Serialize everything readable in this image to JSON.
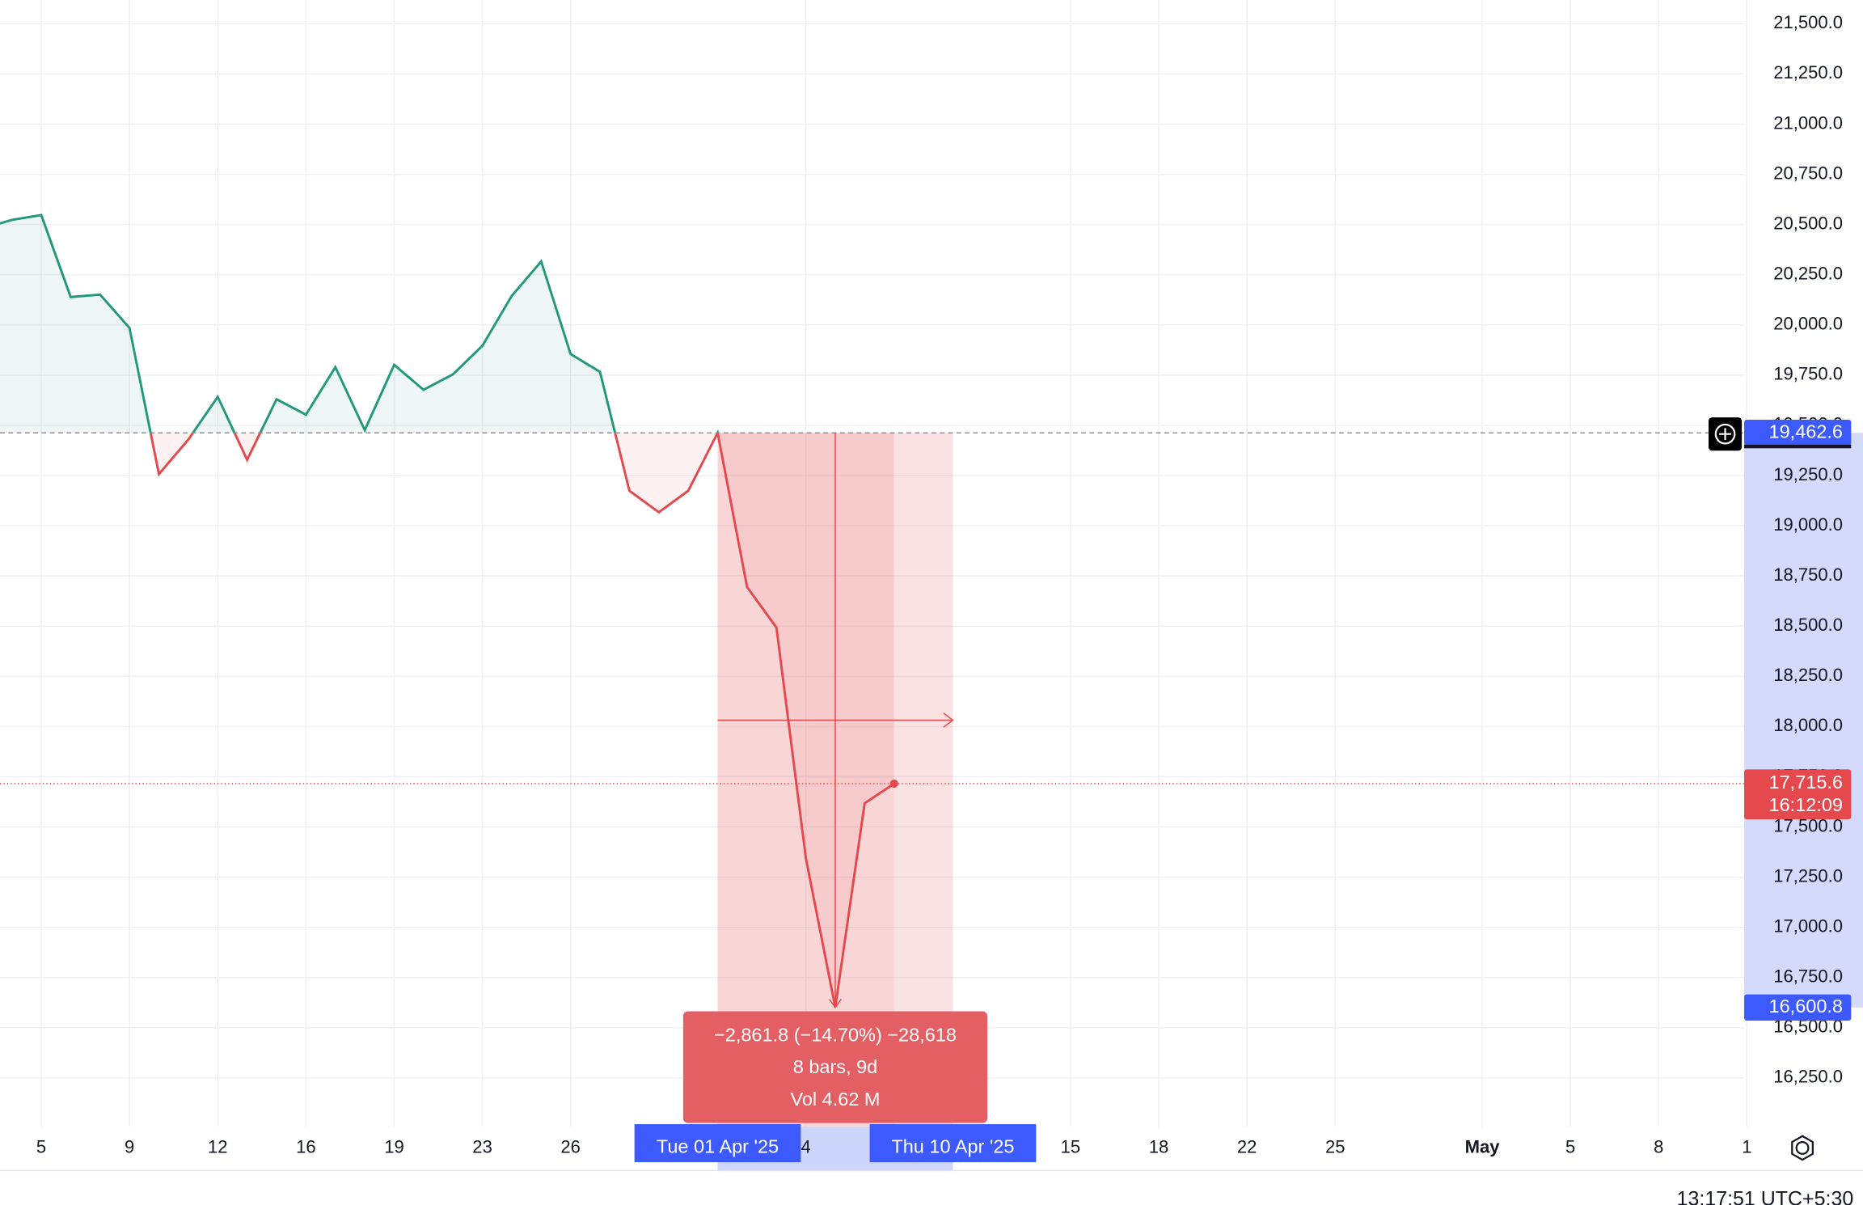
{
  "chart_data": {
    "type": "line",
    "categories": [
      null,
      null,
      "5",
      null,
      null,
      "9",
      null,
      null,
      "12",
      null,
      null,
      "16",
      null,
      null,
      "19",
      null,
      null,
      "23",
      null,
      null,
      "26",
      null,
      null,
      null,
      null,
      null,
      null,
      null,
      "4",
      null,
      null,
      null,
      null,
      null,
      null,
      null,
      null,
      "15",
      null,
      null,
      "18",
      null,
      null,
      "22",
      null,
      null,
      "25",
      null,
      null,
      null,
      null,
      "May",
      null,
      null,
      "5",
      null,
      null,
      "8",
      null,
      null,
      "1"
    ],
    "values": [
      20480,
      20523,
      20547,
      20139,
      20151,
      19985,
      19257,
      19429,
      19642,
      19328,
      19630,
      19553,
      19790,
      19476,
      19801,
      19677,
      19754,
      19896,
      20145,
      20316,
      19855,
      19766,
      19174,
      19067,
      19174,
      19462.6,
      18695,
      18493,
      17345,
      16600.8,
      17618,
      17715.6,
      null,
      null,
      null,
      null,
      null,
      null,
      null,
      null,
      null,
      null,
      null,
      null,
      null,
      null,
      null,
      null,
      null,
      null,
      null,
      null,
      null,
      null,
      null,
      null,
      null,
      null,
      null,
      null,
      null
    ],
    "colors": {
      "up": "#22997a",
      "down": "#e5484d"
    },
    "ylim": [
      16008,
      21618
    ],
    "yticks": [
      {
        "value": 16250,
        "label": "16,250.0"
      },
      {
        "value": 16500,
        "label": "16,500.0"
      },
      {
        "value": 16750,
        "label": "16,750.0"
      },
      {
        "value": 17000,
        "label": "17,000.0"
      },
      {
        "value": 17250,
        "label": "17,250.0"
      },
      {
        "value": 17500,
        "label": "17,500.0"
      },
      {
        "value": 17750,
        "label": "17,750.0"
      },
      {
        "value": 18000,
        "label": "18,000.0"
      },
      {
        "value": 18250,
        "label": "18,250.0"
      },
      {
        "value": 18500,
        "label": "18,500.0"
      },
      {
        "value": 18750,
        "label": "18,750.0"
      },
      {
        "value": 19000,
        "label": "19,000.0"
      },
      {
        "value": 19250,
        "label": "19,250.0"
      },
      {
        "value": 19500,
        "label": "19,500.0"
      },
      {
        "value": 19750,
        "label": "19,750.0"
      },
      {
        "value": 20000,
        "label": "20,000.0"
      },
      {
        "value": 20250,
        "label": "20,250.0"
      },
      {
        "value": 20500,
        "label": "20,500.0"
      },
      {
        "value": 20750,
        "label": "20,750.0"
      },
      {
        "value": 21000,
        "label": "21,000.0"
      },
      {
        "value": 21250,
        "label": "21,250.0"
      },
      {
        "value": 21500,
        "label": "21,500.0"
      }
    ],
    "grid": true,
    "baseline": {
      "value": 19462.6,
      "label": "19,462.6"
    },
    "last_price": {
      "value": 17715.6,
      "label": "17,715.6",
      "countdown": "16:12:09"
    },
    "measure_low": {
      "value": 16600.8,
      "label": "16,600.8"
    },
    "measure": {
      "change": "−2,861.8 (−14.70%) −28,618",
      "bars": "8 bars, 9d",
      "volume": "Vol 4.62 M",
      "start_date": "Tue 01 Apr '25",
      "end_date": "Thu 10 Apr '25"
    },
    "time": "13:17:51 UTC+5:30"
  }
}
